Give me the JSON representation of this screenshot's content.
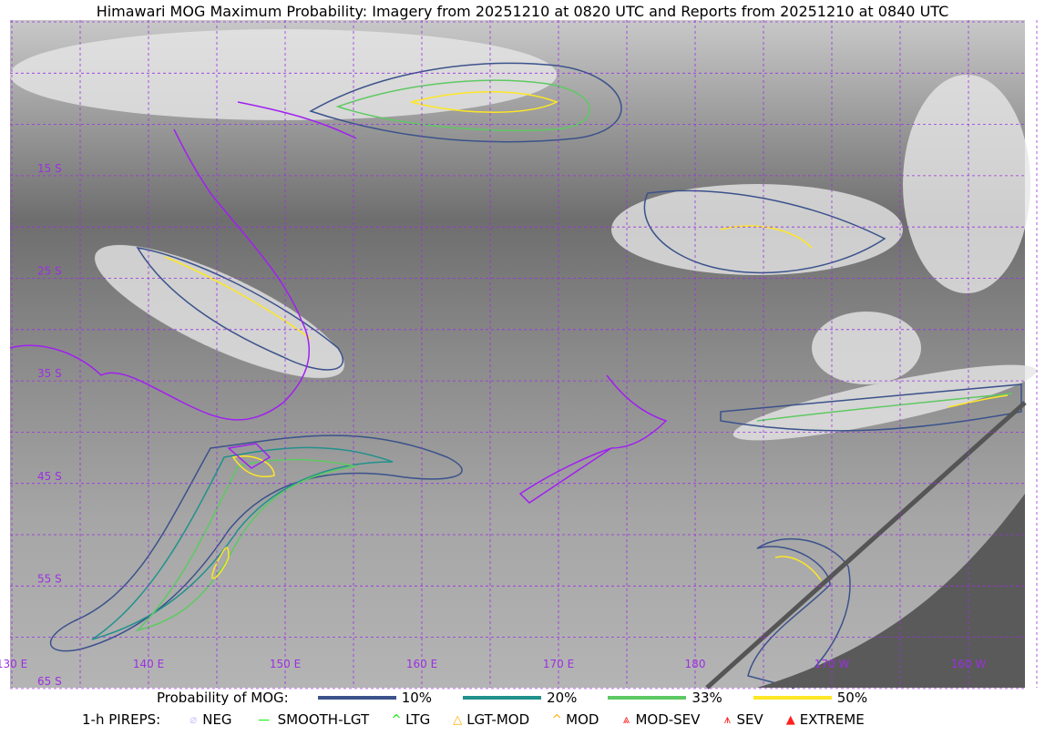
{
  "title": "Himawari MOG Maximum Probability: Imagery from 20251210 at 0820 UTC and Reports from 20251210 at 0840 UTC",
  "map": {
    "lat_labels": [
      "15 S",
      "25 S",
      "35 S",
      "45 S",
      "55 S",
      "65 S"
    ],
    "lon_labels": [
      "130 E",
      "140 E",
      "150 E",
      "160 E",
      "170 E",
      "180",
      "170 W",
      "160 W"
    ],
    "grid_color": "#9b30e0",
    "coast_color": "#a020f0"
  },
  "legend": {
    "probability_label": "Probability of MOG:",
    "levels": [
      {
        "label": "10%",
        "color": "#3b528b"
      },
      {
        "label": "20%",
        "color": "#21918c"
      },
      {
        "label": "33%",
        "color": "#5ec962"
      },
      {
        "label": "50%",
        "color": "#fde725"
      }
    ],
    "pireps_label": "1-h PIREPS:",
    "pireps": [
      {
        "label": "NEG",
        "color": "#c8c8ff",
        "icon": "slashed-circle-icon"
      },
      {
        "label": "SMOOTH-LGT",
        "color": "#00ee00",
        "icon": "dash-icon"
      },
      {
        "label": "LTG",
        "color": "#00ee00",
        "icon": "caret-icon"
      },
      {
        "label": "LGT-MOD",
        "color": "#ffb000",
        "icon": "caret-bar-icon"
      },
      {
        "label": "MOD",
        "color": "#ffb000",
        "icon": "caret-icon"
      },
      {
        "label": "MOD-SEV",
        "color": "#ff2020",
        "icon": "double-caret-bar-icon"
      },
      {
        "label": "SEV",
        "color": "#ff2020",
        "icon": "double-caret-icon"
      },
      {
        "label": "EXTREME",
        "color": "#ff2020",
        "icon": "filled-triangle-icon"
      }
    ]
  }
}
